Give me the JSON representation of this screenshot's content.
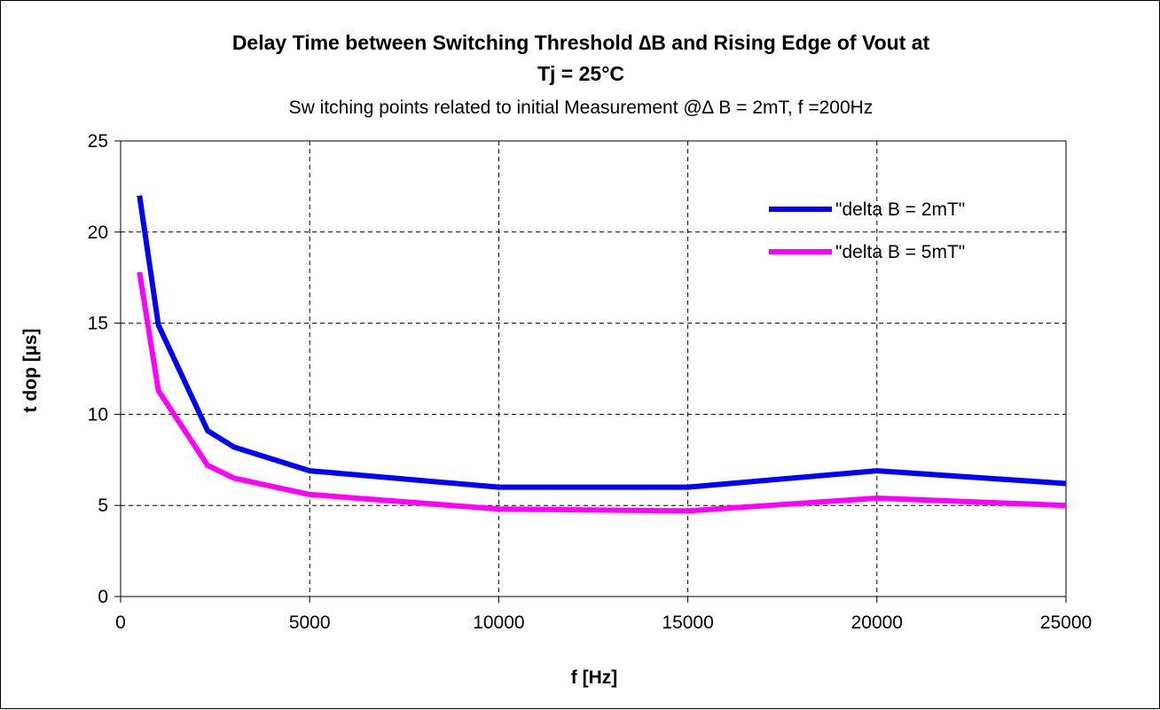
{
  "chart_data": {
    "type": "line",
    "title_line1": "Delay Time between Switching Threshold ∆B and Rising Edge of Vout at",
    "title_line2": "Tj = 25°C",
    "subtitle": "Sw itching points related to initial Measurement @∆ B = 2mT,  f =200Hz",
    "xlabel": "f [Hz]",
    "ylabel": "t dop [µs]",
    "xlim": [
      0,
      25000
    ],
    "ylim": [
      0,
      25
    ],
    "xticks": [
      0,
      5000,
      10000,
      15000,
      20000,
      25000
    ],
    "xtick_labels": [
      "0",
      "5000",
      "10000",
      "15000",
      "20000",
      "25000"
    ],
    "yticks": [
      0,
      5,
      10,
      15,
      20,
      25
    ],
    "ytick_labels": [
      "0",
      "5",
      "10",
      "15",
      "20",
      "25"
    ],
    "grid": true,
    "legend_position": "top-right",
    "series": [
      {
        "name": "\"delta B = 2mT\"",
        "color": "#0000ff",
        "x": [
          500,
          1000,
          2300,
          3000,
          5000,
          10000,
          15000,
          20000,
          25000
        ],
        "y": [
          22.0,
          14.9,
          9.1,
          8.2,
          6.9,
          6.0,
          6.0,
          6.9,
          6.2
        ]
      },
      {
        "name": "\"delta B = 5mT\"",
        "color": "#ff00ff",
        "x": [
          500,
          1000,
          2300,
          3000,
          5000,
          10000,
          15000,
          20000,
          25000
        ],
        "y": [
          17.8,
          11.3,
          7.2,
          6.5,
          5.6,
          4.8,
          4.7,
          5.4,
          5.0
        ]
      }
    ]
  }
}
